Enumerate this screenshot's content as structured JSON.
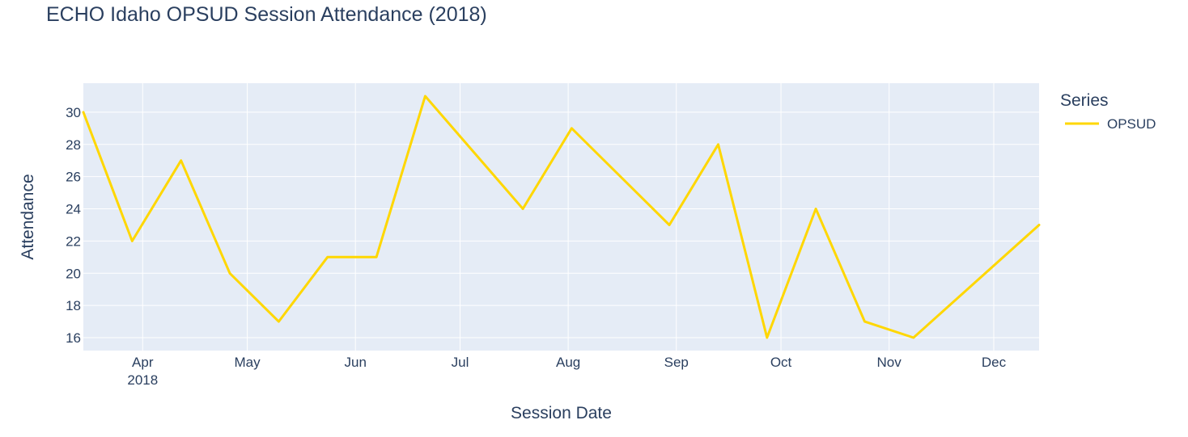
{
  "chart_data": {
    "type": "line",
    "title": "ECHO Idaho OPSUD Session Attendance (2018)",
    "xlabel": "Session Date",
    "ylabel": "Attendance",
    "legend_title": "Series",
    "legend_position": "top-right",
    "grid": true,
    "colors": {
      "plot_bg": "#E5ECF6",
      "grid": "#ffffff",
      "line": "#FFD700",
      "text": "#2a3f5f"
    },
    "xlim": [
      "2018-03-15",
      "2018-12-14"
    ],
    "ylim": [
      15.2,
      31.8
    ],
    "y_ticks": [
      16,
      18,
      20,
      22,
      24,
      26,
      28,
      30
    ],
    "x_ticks": [
      {
        "date": "2018-04-01",
        "label": "Apr",
        "sublabel": "2018"
      },
      {
        "date": "2018-05-01",
        "label": "May",
        "sublabel": ""
      },
      {
        "date": "2018-06-01",
        "label": "Jun",
        "sublabel": ""
      },
      {
        "date": "2018-07-01",
        "label": "Jul",
        "sublabel": ""
      },
      {
        "date": "2018-08-01",
        "label": "Aug",
        "sublabel": ""
      },
      {
        "date": "2018-09-01",
        "label": "Sep",
        "sublabel": ""
      },
      {
        "date": "2018-10-01",
        "label": "Oct",
        "sublabel": ""
      },
      {
        "date": "2018-11-01",
        "label": "Nov",
        "sublabel": ""
      },
      {
        "date": "2018-12-01",
        "label": "Dec",
        "sublabel": ""
      }
    ],
    "series": [
      {
        "name": "OPSUD",
        "x": [
          "2018-03-15",
          "2018-03-29",
          "2018-04-12",
          "2018-04-26",
          "2018-05-10",
          "2018-05-24",
          "2018-06-07",
          "2018-06-21",
          "2018-07-19",
          "2018-08-02",
          "2018-08-30",
          "2018-09-13",
          "2018-09-27",
          "2018-10-11",
          "2018-10-25",
          "2018-11-08",
          "2018-12-14"
        ],
        "values": [
          30,
          22,
          27,
          20,
          17,
          21,
          21,
          31,
          24,
          29,
          23,
          28,
          16,
          24,
          17,
          16,
          23
        ]
      }
    ]
  }
}
